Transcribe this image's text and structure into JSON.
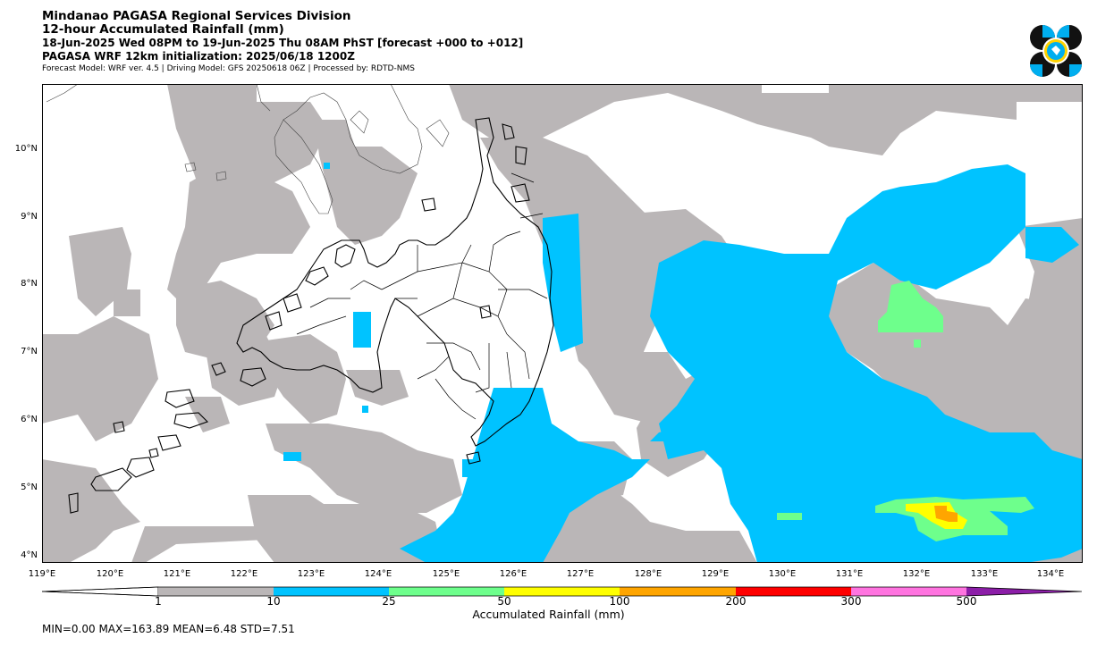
{
  "header": {
    "line1": "Mindanao PAGASA Regional Services Division",
    "line2": "12-hour Accumulated Rainfall (mm)",
    "line3": "18-Jun-2025 Wed 08PM to 19-Jun-2025 Thu 08AM PhST [forecast +000 to +012]",
    "line4": "PAGASA WRF 12km initialization: 2025/06/18 1200Z",
    "line5": "Forecast Model: WRF ver. 4.5 | Driving Model: GFS 20250618 06Z | Processed by: RDTD-NMS"
  },
  "map": {
    "lat_labels": [
      "10°N",
      "9°N",
      "8°N",
      "7°N",
      "6°N",
      "5°N",
      "4°N"
    ],
    "lon_labels": [
      "119°E",
      "120°E",
      "121°E",
      "122°E",
      "123°E",
      "124°E",
      "125°E",
      "126°E",
      "127°E",
      "128°E",
      "129°E",
      "130°E",
      "131°E",
      "132°E",
      "133°E",
      "134°E"
    ]
  },
  "colorbar": {
    "ticks": [
      "1",
      "10",
      "25",
      "50",
      "100",
      "200",
      "300",
      "500"
    ],
    "colors": [
      "#bab6b7",
      "#00c3ff",
      "#6eff8c",
      "#ffff00",
      "#ffa500",
      "#ff0000",
      "#ff74e0",
      "#8c1ea8"
    ],
    "title": "Accumulated Rainfall (mm)"
  },
  "stats": "MIN=0.00   MAX=163.89   MEAN=6.48   STD=7.51"
}
